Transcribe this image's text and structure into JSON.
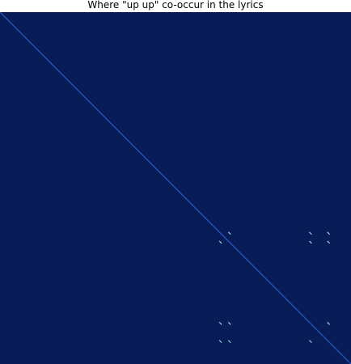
{
  "chart_data": {
    "type": "heatmap",
    "title": "Where \"up up\" co-occur in the lyrics",
    "xlabel": "",
    "ylabel": "",
    "n_words": 39,
    "background_color": "#081d58",
    "diagonal_color": "#2a55c5",
    "match_color": "#8fd3d8",
    "grid": false,
    "matrix_description": "self-similarity matrix; cell (i, j) is filled when word i equals word j",
    "diagonal": "all cells i == j",
    "off_diagonal_matches": [
      [
        24,
        25
      ],
      [
        24,
        34
      ],
      [
        24,
        36
      ],
      [
        25,
        24
      ],
      [
        25,
        34
      ],
      [
        25,
        36
      ],
      [
        34,
        24
      ],
      [
        34,
        25
      ],
      [
        34,
        36
      ],
      [
        36,
        24
      ],
      [
        36,
        25
      ],
      [
        36,
        34
      ]
    ],
    "token_positions": [
      24,
      25,
      34,
      36
    ]
  }
}
